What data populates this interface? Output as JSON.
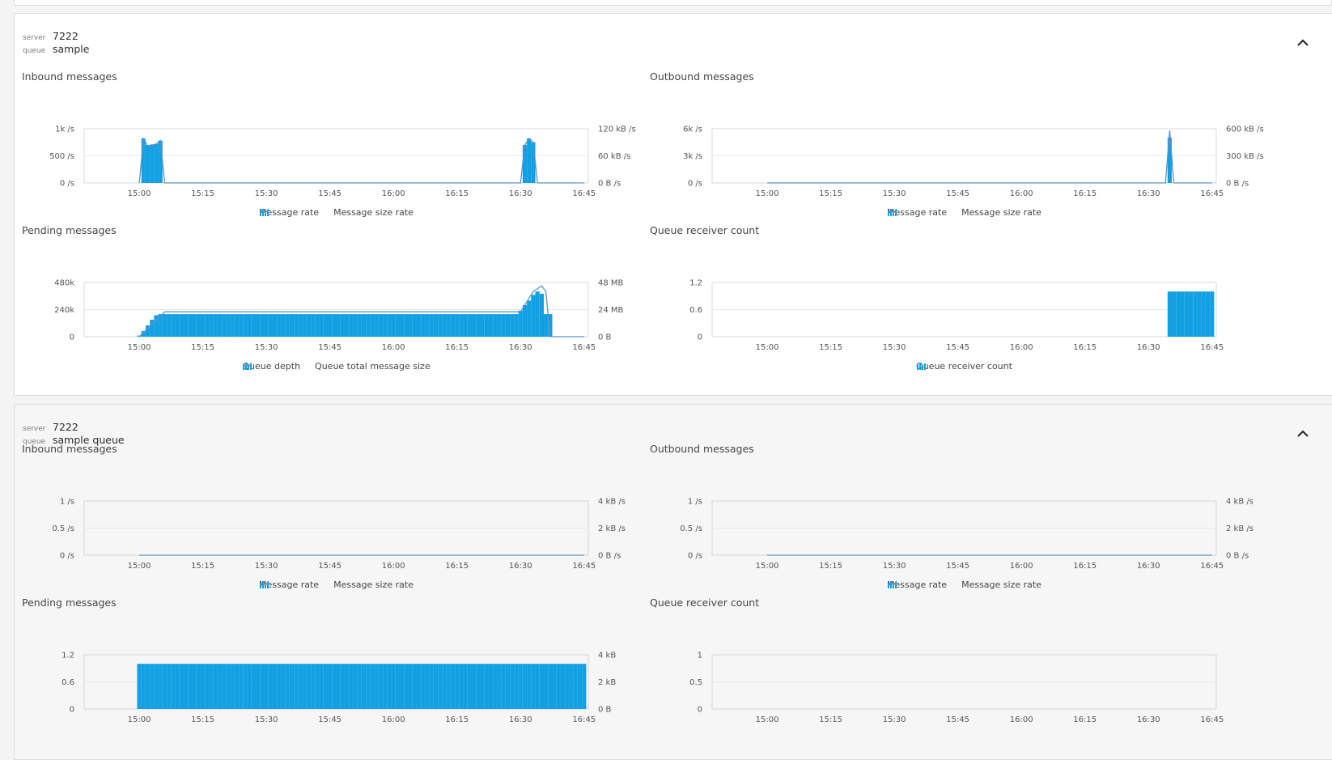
{
  "colors": {
    "bar": "#12a0e3",
    "line": "#5b93c9",
    "grid": "#e9e9e9",
    "frame": "#cfcfcf"
  },
  "time_ticks": [
    "15:00",
    "15:15",
    "15:30",
    "15:45",
    "16:00",
    "16:15",
    "16:30",
    "16:45"
  ],
  "panels": [
    {
      "server_key": "server",
      "server_value": "7222",
      "queue_key": "queue",
      "queue_value": "sample",
      "charts": [
        {
          "title": "Inbound messages",
          "legend": [
            {
              "icon": "bar-chart-icon",
              "label": "Message rate"
            },
            {
              "icon": "line-chart-icon",
              "label": "Message size rate"
            }
          ],
          "y_left_ticks": [
            "1k /s",
            "500 /s",
            "0 /s"
          ],
          "y_right_ticks": [
            "120 kB /s",
            "60 kB /s",
            "0 B /s"
          ],
          "chart_data": {
            "type": "bar",
            "x_range": [
              "14:47",
              "16:46"
            ],
            "ylim": [
              0,
              1000
            ],
            "bars": [
              [
                "15:01",
                820
              ],
              [
                "15:02",
                700
              ],
              [
                "15:03",
                710
              ],
              [
                "15:04",
                720
              ],
              [
                "15:05",
                780
              ],
              [
                "16:31",
                700
              ],
              [
                "16:32",
                820
              ],
              [
                "16:33",
                750
              ]
            ],
            "line_ylim": [
              0,
              120
            ],
            "line": [
              [
                "15:00",
                0
              ],
              [
                "15:01",
                98
              ],
              [
                "15:02",
                82
              ],
              [
                "15:03",
                84
              ],
              [
                "15:04",
                86
              ],
              [
                "15:05",
                94
              ],
              [
                "15:06",
                0
              ],
              [
                "16:30",
                0
              ],
              [
                "16:31",
                84
              ],
              [
                "16:32",
                98
              ],
              [
                "16:33",
                90
              ],
              [
                "16:34",
                0
              ],
              [
                "16:45",
                0
              ]
            ]
          }
        },
        {
          "title": "Outbound messages",
          "legend": [
            {
              "icon": "bar-chart-icon",
              "label": "Message rate"
            },
            {
              "icon": "line-chart-icon",
              "label": "Message size rate"
            }
          ],
          "y_left_ticks": [
            "6k /s",
            "3k /s",
            "0 /s"
          ],
          "y_right_ticks": [
            "600 kB /s",
            "300 kB /s",
            "0 B /s"
          ],
          "chart_data": {
            "type": "bar",
            "x_range": [
              "14:47",
              "16:46"
            ],
            "ylim": [
              0,
              6000
            ],
            "bars": [
              [
                "16:35",
                5000
              ]
            ],
            "line_ylim": [
              0,
              600
            ],
            "line": [
              [
                "15:00",
                0
              ],
              [
                "16:34",
                0
              ],
              [
                "16:35",
                580
              ],
              [
                "16:36",
                0
              ],
              [
                "16:45",
                0
              ]
            ]
          }
        },
        {
          "title": "Pending messages",
          "legend": [
            {
              "icon": "bar-chart-icon",
              "label": "Queue depth"
            },
            {
              "icon": "line-chart-icon",
              "label": "Queue total message size"
            }
          ],
          "y_left_ticks": [
            "480k",
            "240k",
            "0"
          ],
          "y_right_ticks": [
            "48 MB",
            "24 MB",
            "0 B"
          ],
          "chart_data": {
            "type": "bar",
            "x_range": [
              "14:47",
              "16:46"
            ],
            "ylim": [
              0,
              480000
            ],
            "bars_range": {
              "from": "15:00",
              "to": "16:37",
              "plateau": 200000
            },
            "bars_ramp": [
              [
                "15:00",
                10000
              ],
              [
                "15:01",
                50000
              ],
              [
                "15:02",
                100000
              ],
              [
                "15:03",
                150000
              ],
              [
                "15:04",
                190000
              ],
              [
                "16:30",
                230000
              ],
              [
                "16:31",
                280000
              ],
              [
                "16:32",
                320000
              ],
              [
                "16:33",
                370000
              ],
              [
                "16:34",
                400000
              ],
              [
                "16:35",
                380000
              ]
            ],
            "line_ylim": [
              0,
              48
            ],
            "line": [
              [
                "15:00",
                0
              ],
              [
                "15:06",
                22
              ],
              [
                "16:30",
                22
              ],
              [
                "16:33",
                40
              ],
              [
                "16:35",
                45
              ],
              [
                "16:36",
                40
              ],
              [
                "16:37",
                0
              ],
              [
                "16:45",
                0
              ]
            ]
          }
        },
        {
          "title": "Queue receiver count",
          "legend": [
            {
              "icon": "bar-chart-icon",
              "label": "Queue receiver count"
            }
          ],
          "y_left_ticks": [
            "1.2",
            "0.6",
            "0"
          ],
          "y_right_ticks": [],
          "chart_data": {
            "type": "bar",
            "x_range": [
              "14:47",
              "16:46"
            ],
            "ylim": [
              0,
              1.2
            ],
            "bars_range": {
              "from": "16:35",
              "to": "16:45",
              "plateau": 1
            }
          }
        }
      ]
    },
    {
      "server_key": "server",
      "server_value": "7222",
      "queue_key": "queue",
      "queue_value": "sample queue",
      "charts": [
        {
          "title": "Inbound messages",
          "legend": [
            {
              "icon": "bar-chart-icon",
              "label": "Message rate"
            },
            {
              "icon": "line-chart-icon",
              "label": "Message size rate"
            }
          ],
          "y_left_ticks": [
            "1 /s",
            "0.5 /s",
            "0 /s"
          ],
          "y_right_ticks": [
            "4 kB /s",
            "2 kB /s",
            "0 B /s"
          ],
          "chart_data": {
            "type": "bar",
            "x_range": [
              "14:47",
              "16:46"
            ],
            "ylim": [
              0,
              1
            ],
            "line_ylim": [
              0,
              4
            ],
            "line": [
              [
                "15:00",
                0
              ],
              [
                "16:45",
                0
              ]
            ]
          }
        },
        {
          "title": "Outbound messages",
          "legend": [
            {
              "icon": "bar-chart-icon",
              "label": "Message rate"
            },
            {
              "icon": "line-chart-icon",
              "label": "Message size rate"
            }
          ],
          "y_left_ticks": [
            "1 /s",
            "0.5 /s",
            "0 /s"
          ],
          "y_right_ticks": [
            "4 kB /s",
            "2 kB /s",
            "0 B /s"
          ],
          "chart_data": {
            "type": "bar",
            "x_range": [
              "14:47",
              "16:46"
            ],
            "ylim": [
              0,
              1
            ],
            "line_ylim": [
              0,
              4
            ],
            "line": [
              [
                "15:00",
                0
              ],
              [
                "16:45",
                0
              ]
            ]
          }
        },
        {
          "title": "Pending messages",
          "legend": [],
          "y_left_ticks": [
            "1.2",
            "0.6",
            "0"
          ],
          "y_right_ticks": [
            "4 kB",
            "2 kB",
            "0 B"
          ],
          "chart_data": {
            "type": "bar",
            "x_range": [
              "14:47",
              "16:46"
            ],
            "ylim": [
              0,
              1.2
            ],
            "bars_range": {
              "from": "15:00",
              "to": "16:45",
              "plateau": 1
            }
          }
        },
        {
          "title": "Queue receiver count",
          "legend": [],
          "y_left_ticks": [
            "1",
            "0.5",
            "0"
          ],
          "y_right_ticks": [],
          "chart_data": {
            "type": "bar",
            "x_range": [
              "14:47",
              "16:46"
            ],
            "ylim": [
              0,
              1
            ]
          }
        }
      ]
    }
  ]
}
